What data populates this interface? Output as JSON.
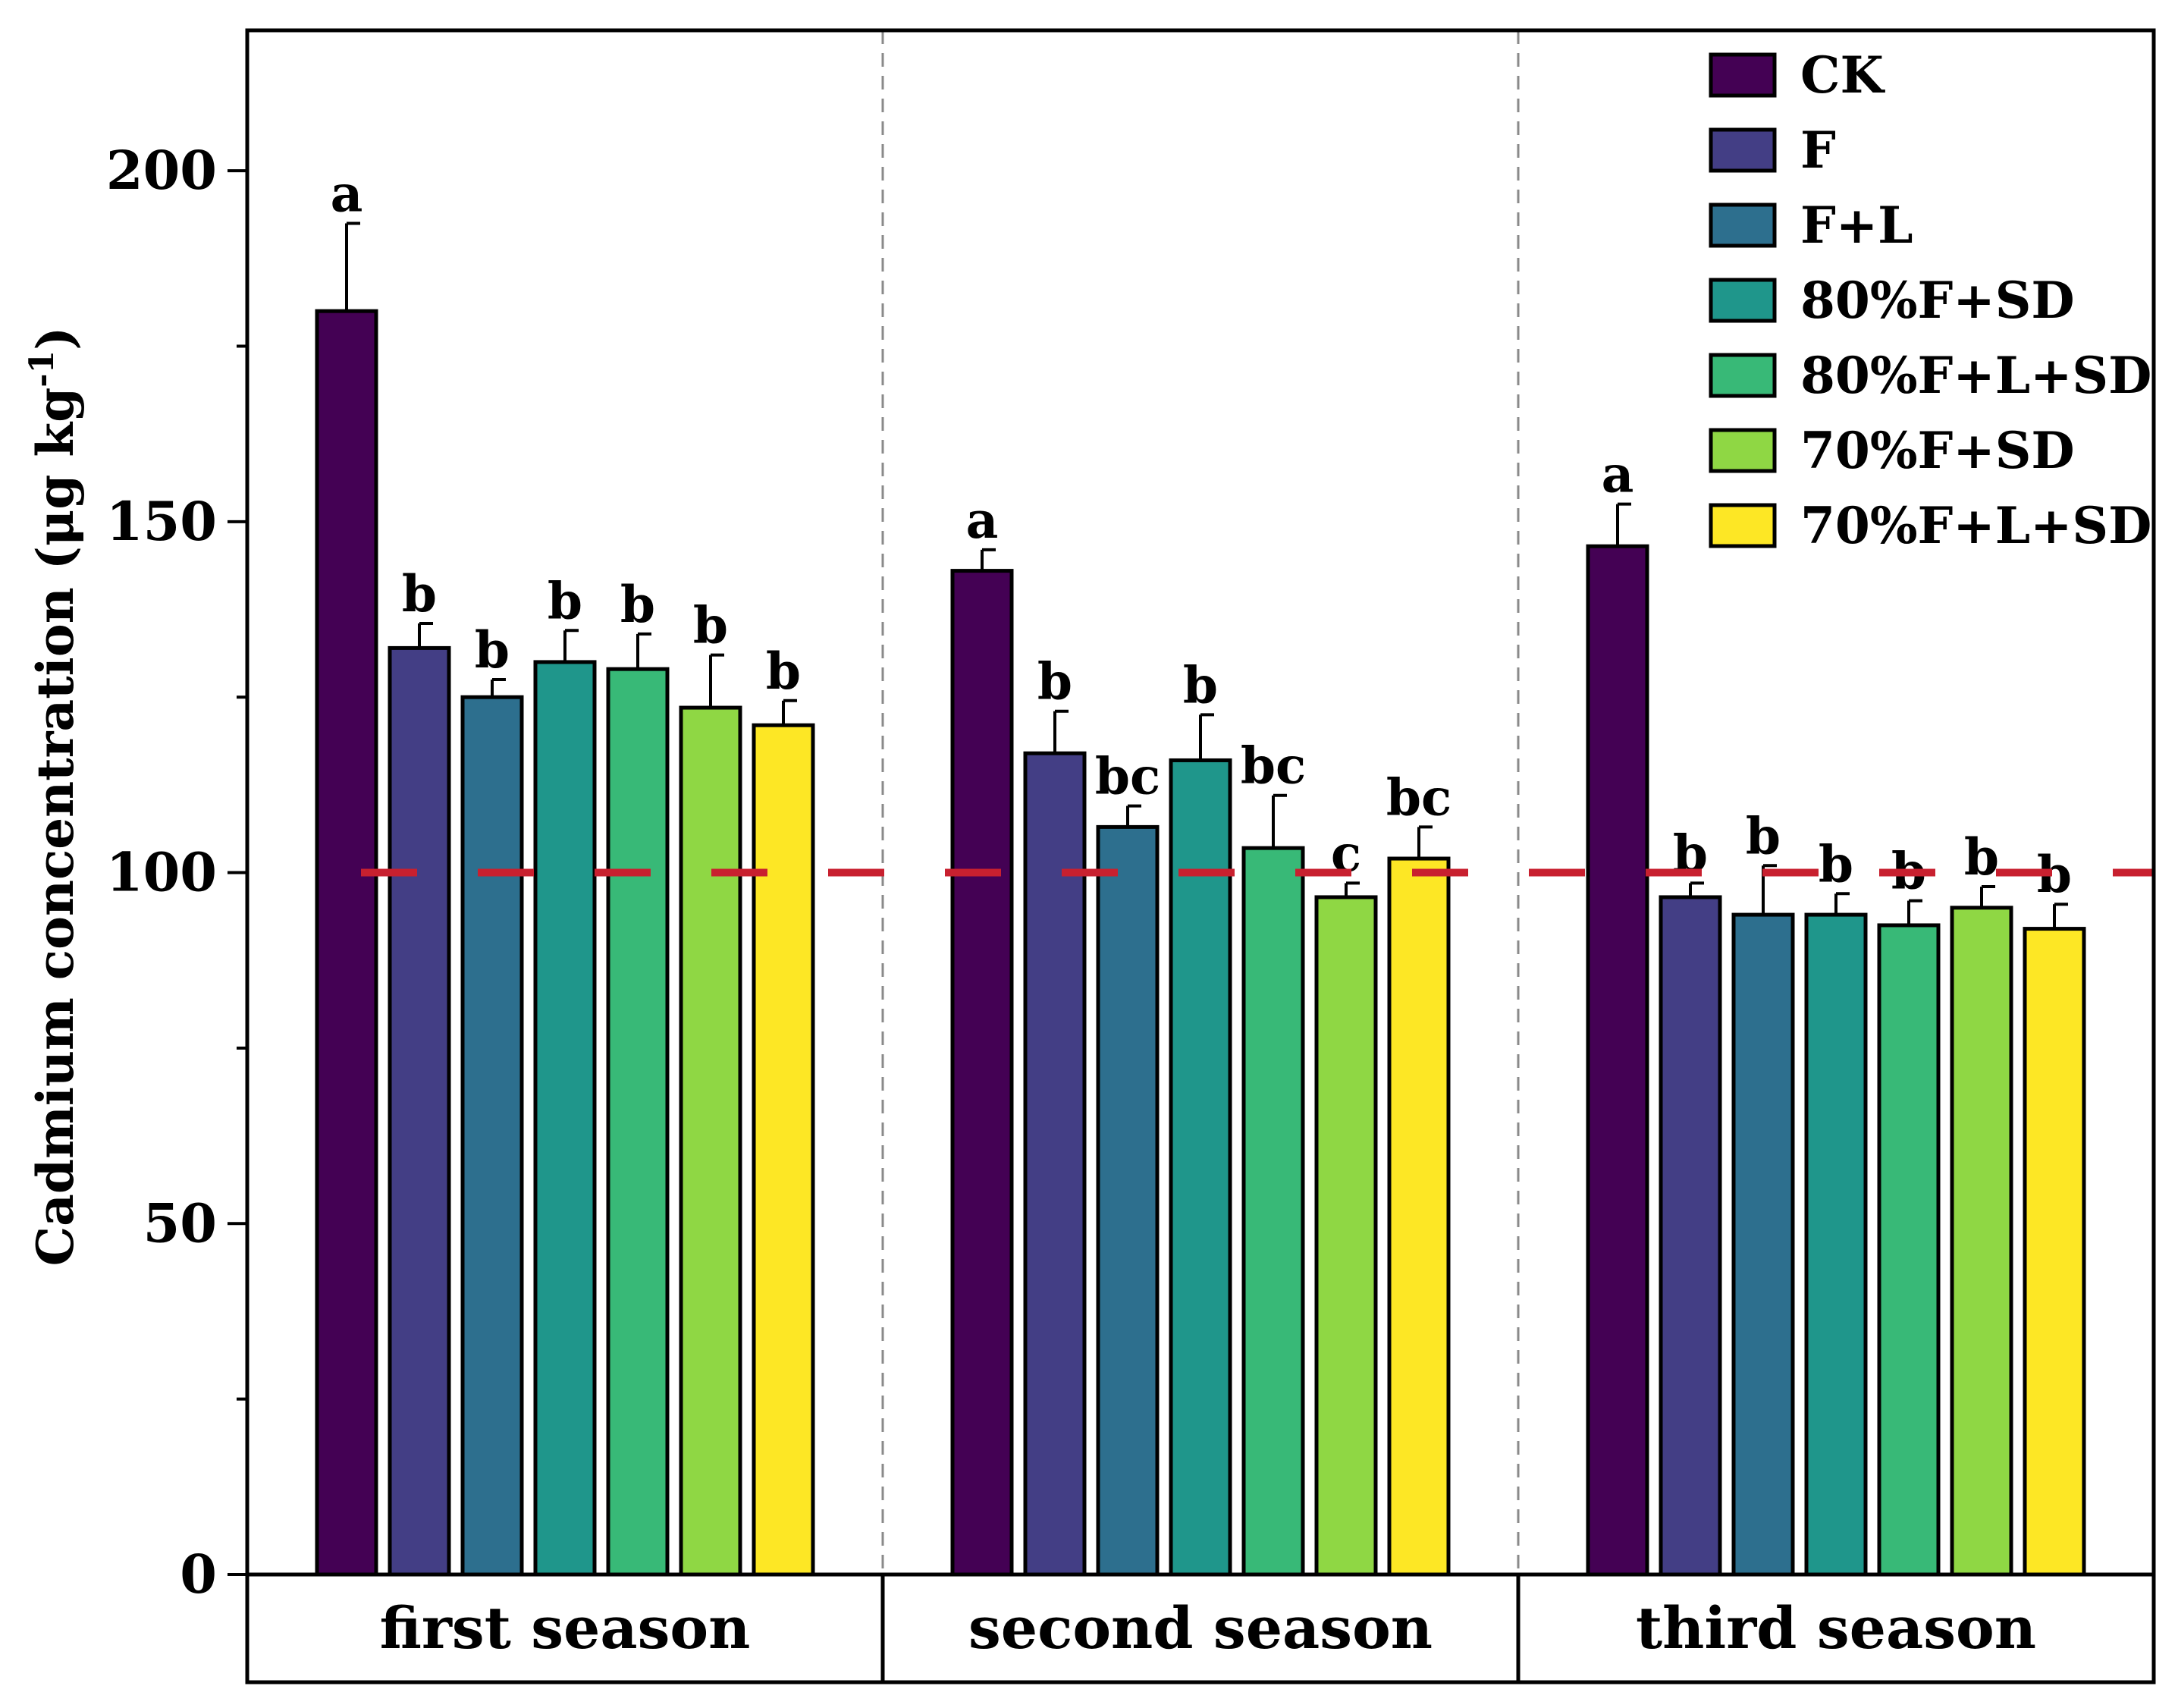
{
  "chart_data": {
    "type": "bar",
    "title": "",
    "xlabel": "",
    "ylabel": "Cadmium concentration (μg kg",
    "ylabel_superscript": "-1",
    "ylabel_close": ")",
    "ylim": [
      0,
      220
    ],
    "yticks": [
      0,
      50,
      100,
      150,
      200
    ],
    "yminor_step": 25,
    "reference_line": {
      "y": 100,
      "color": "#c8202f",
      "style": "dashed"
    },
    "categories": [
      "first season",
      "second season",
      "third season"
    ],
    "series": [
      {
        "name": "CK",
        "color": "#440154",
        "values": [
          180,
          143,
          146.5
        ],
        "errors": [
          12.5,
          3,
          6
        ],
        "letters": [
          "a",
          "a",
          "a"
        ]
      },
      {
        "name": "F",
        "color": "#433e85",
        "values": [
          132,
          117,
          96.5
        ],
        "errors": [
          3.5,
          6,
          2
        ],
        "letters": [
          "b",
          "b",
          "b"
        ]
      },
      {
        "name": "F+L",
        "color": "#2d6f8e",
        "values": [
          125,
          106.5,
          94
        ],
        "errors": [
          2.5,
          3,
          7
        ],
        "letters": [
          "b",
          "bc",
          "b"
        ]
      },
      {
        "name": "80%F+SD",
        "color": "#1f968b",
        "values": [
          130,
          116,
          94
        ],
        "errors": [
          4.5,
          6.5,
          3
        ],
        "letters": [
          "b",
          "b",
          "b"
        ]
      },
      {
        "name": "80%F+L+SD",
        "color": "#38b977",
        "values": [
          129,
          103.5,
          92.5
        ],
        "errors": [
          5,
          7.5,
          3.5
        ],
        "letters": [
          "b",
          "bc",
          "b"
        ]
      },
      {
        "name": "70%F+SD",
        "color": "#8fd744",
        "values": [
          123.5,
          96.5,
          95
        ],
        "errors": [
          7.5,
          2,
          3
        ],
        "letters": [
          "b",
          "c",
          "b"
        ]
      },
      {
        "name": "70%F+L+SD",
        "color": "#fde725",
        "values": [
          121,
          102,
          92
        ],
        "errors": [
          3.5,
          4.5,
          3.5
        ],
        "letters": [
          "b",
          "bc",
          "b"
        ]
      }
    ],
    "legend_position": "top-right",
    "grid": false
  }
}
